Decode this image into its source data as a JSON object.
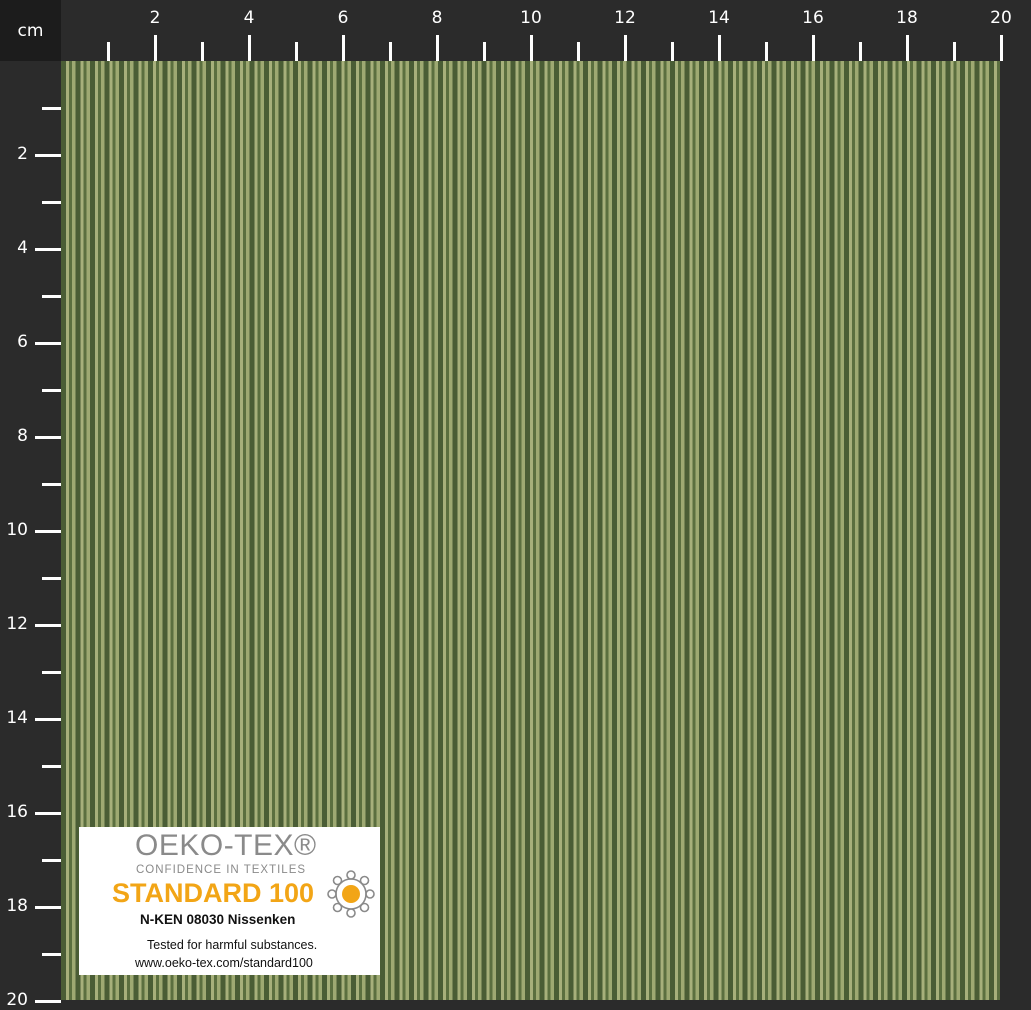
{
  "ruler": {
    "unit": "cm",
    "top_labels": [
      "2",
      "4",
      "6",
      "8",
      "10",
      "12",
      "14",
      "16",
      "18",
      "20"
    ],
    "left_labels": [
      "2",
      "4",
      "6",
      "8",
      "10",
      "12",
      "14",
      "16",
      "18",
      "20"
    ]
  },
  "colors": {
    "stripe_dark": "#4a5d35",
    "stripe_light": "#a7b07b",
    "ruler_bg": "#2b2b2b",
    "label_orange": "#f2a516"
  },
  "label": {
    "brand": "OEKO-TEX®",
    "tagline": "CONFIDENCE IN TEXTILES",
    "standard": "STANDARD 100",
    "certificate": "N-KEN 08030 Nissenken",
    "tested": "Tested for harmful substances.",
    "url": "www.oeko-tex.com/standard100",
    "logo_icon": "oeko-tex-flower-logo"
  }
}
